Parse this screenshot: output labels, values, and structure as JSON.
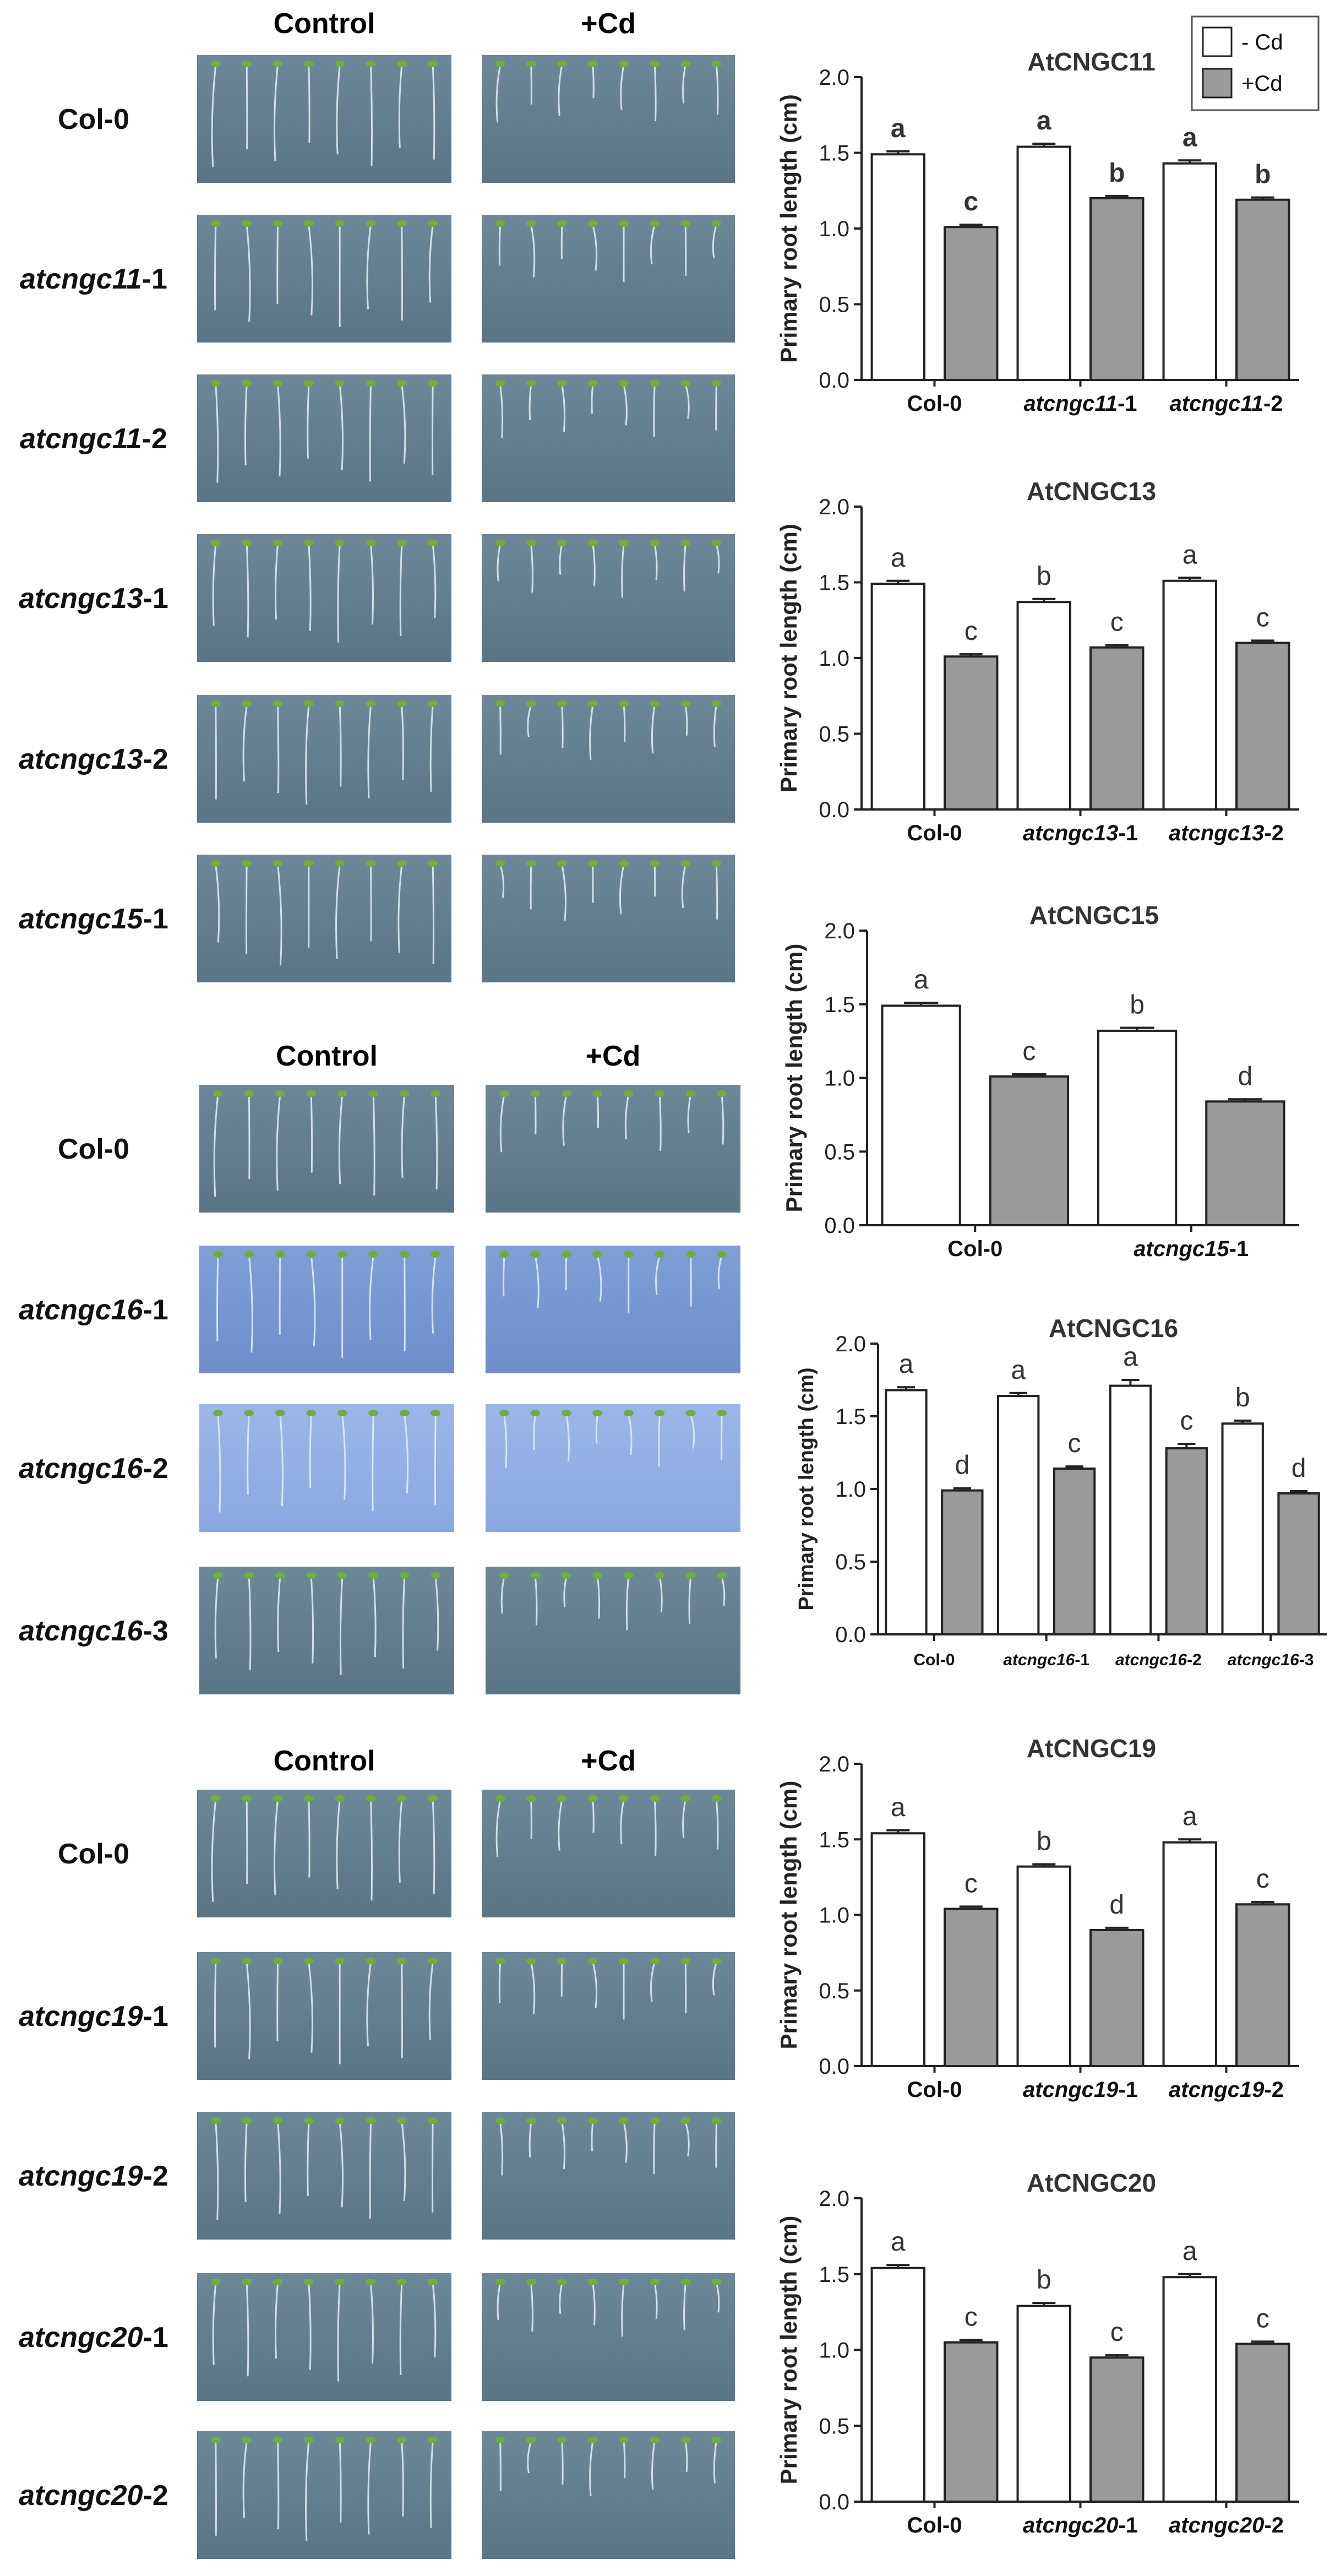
{
  "legend": {
    "items": [
      {
        "label": "- Cd",
        "fill": "#ffffff"
      },
      {
        "label": "+Cd",
        "fill": "#9a9a9a"
      }
    ]
  },
  "photo_panels": [
    {
      "col_headers": [
        "Control",
        "+Cd"
      ],
      "rows": [
        {
          "italic": "",
          "suffix": "Col-0"
        },
        {
          "italic": "atcngc11",
          "suffix": "-1"
        },
        {
          "italic": "atcngc11",
          "suffix": "-2"
        },
        {
          "italic": "atcngc13",
          "suffix": "-1"
        },
        {
          "italic": "atcngc13",
          "suffix": "-2"
        },
        {
          "italic": "atcngc15",
          "suffix": "-1"
        }
      ]
    },
    {
      "col_headers": [
        "Control",
        "+Cd"
      ],
      "rows": [
        {
          "italic": "",
          "suffix": "Col-0"
        },
        {
          "italic": "atcngc16",
          "suffix": "-1"
        },
        {
          "italic": "atcngc16",
          "suffix": "-2"
        },
        {
          "italic": "atcngc16",
          "suffix": "-3"
        }
      ]
    },
    {
      "col_headers": [
        "Control",
        "+Cd"
      ],
      "rows": [
        {
          "italic": "",
          "suffix": "Col-0"
        },
        {
          "italic": "atcngc19",
          "suffix": "-1"
        },
        {
          "italic": "atcngc19",
          "suffix": "-2"
        },
        {
          "italic": "atcngc20",
          "suffix": "-1"
        },
        {
          "italic": "atcngc20",
          "suffix": "-2"
        }
      ]
    }
  ],
  "chart_data": [
    {
      "type": "bar",
      "title": "AtCNGC11",
      "ylabel": "Primary root length (cm)",
      "ylim": [
        0,
        2.0
      ],
      "yticks": [
        "0.0",
        "0.5",
        "1.0",
        "1.5",
        "2.0"
      ],
      "groups": [
        {
          "italic": "",
          "suffix": "Col-0"
        },
        {
          "italic": "atcngc11",
          "suffix": "-1"
        },
        {
          "italic": "atcngc11",
          "suffix": "-2"
        }
      ],
      "series": [
        {
          "name": "- Cd",
          "values": [
            1.49,
            1.54,
            1.43
          ],
          "errors": [
            0.02,
            0.02,
            0.02
          ],
          "letters": [
            "a",
            "a",
            "a"
          ]
        },
        {
          "name": "+Cd",
          "values": [
            1.01,
            1.2,
            1.19
          ],
          "errors": [
            0.015,
            0.015,
            0.015
          ],
          "letters": [
            "c",
            "b",
            "b"
          ]
        }
      ]
    },
    {
      "type": "bar",
      "title": "AtCNGC13",
      "ylabel": "Primary root length (cm)",
      "ylim": [
        0,
        2.0
      ],
      "yticks": [
        "0.0",
        "0.5",
        "1.0",
        "1.5",
        "2.0"
      ],
      "groups": [
        {
          "italic": "",
          "suffix": "Col-0"
        },
        {
          "italic": "atcngc13",
          "suffix": "-1"
        },
        {
          "italic": "atcngc13",
          "suffix": "-2"
        }
      ],
      "series": [
        {
          "name": "- Cd",
          "values": [
            1.49,
            1.37,
            1.51
          ],
          "errors": [
            0.02,
            0.02,
            0.02
          ],
          "letters": [
            "a",
            "b",
            "a"
          ]
        },
        {
          "name": "+Cd",
          "values": [
            1.01,
            1.07,
            1.1
          ],
          "errors": [
            0.015,
            0.015,
            0.015
          ],
          "letters": [
            "c",
            "c",
            "c"
          ]
        }
      ]
    },
    {
      "type": "bar",
      "title": "AtCNGC15",
      "ylabel": "Primary root length (cm)",
      "ylim": [
        0,
        2.0
      ],
      "yticks": [
        "0.0",
        "0.5",
        "1.0",
        "1.5",
        "2.0"
      ],
      "groups": [
        {
          "italic": "",
          "suffix": "Col-0"
        },
        {
          "italic": "atcngc15",
          "suffix": "-1"
        }
      ],
      "series": [
        {
          "name": "- Cd",
          "values": [
            1.49,
            1.32
          ],
          "errors": [
            0.02,
            0.02
          ],
          "letters": [
            "a",
            "b"
          ]
        },
        {
          "name": "+Cd",
          "values": [
            1.01,
            0.84
          ],
          "errors": [
            0.015,
            0.015
          ],
          "letters": [
            "c",
            "d"
          ]
        }
      ]
    },
    {
      "type": "bar",
      "title": "AtCNGC16",
      "ylabel": "Primary root length (cm)",
      "ylim": [
        0,
        2.0
      ],
      "yticks": [
        "0.0",
        "0.5",
        "1.0",
        "1.5",
        "2.0"
      ],
      "groups": [
        {
          "italic": "",
          "suffix": "Col-0"
        },
        {
          "italic": "atcngc16",
          "suffix": "-1"
        },
        {
          "italic": "atcngc16",
          "suffix": "-2"
        },
        {
          "italic": "atcngc16",
          "suffix": "-3"
        }
      ],
      "series": [
        {
          "name": "- Cd",
          "values": [
            1.68,
            1.64,
            1.71,
            1.45
          ],
          "errors": [
            0.02,
            0.02,
            0.04,
            0.02
          ],
          "letters": [
            "a",
            "a",
            "a",
            "b"
          ]
        },
        {
          "name": "+Cd",
          "values": [
            0.99,
            1.14,
            1.28,
            0.97
          ],
          "errors": [
            0.015,
            0.015,
            0.03,
            0.015
          ],
          "letters": [
            "d",
            "c",
            "c",
            "d"
          ]
        }
      ]
    },
    {
      "type": "bar",
      "title": "AtCNGC19",
      "ylabel": "Primary root length (cm)",
      "ylim": [
        0,
        2.0
      ],
      "yticks": [
        "0.0",
        "0.5",
        "1.0",
        "1.5",
        "2.0"
      ],
      "groups": [
        {
          "italic": "",
          "suffix": "Col-0"
        },
        {
          "italic": "atcngc19",
          "suffix": "-1"
        },
        {
          "italic": "atcngc19",
          "suffix": "-2"
        }
      ],
      "series": [
        {
          "name": "- Cd",
          "values": [
            1.54,
            1.32,
            1.48
          ],
          "errors": [
            0.02,
            0.015,
            0.02
          ],
          "letters": [
            "a",
            "b",
            "a"
          ]
        },
        {
          "name": "+Cd",
          "values": [
            1.04,
            0.9,
            1.07
          ],
          "errors": [
            0.015,
            0.015,
            0.015
          ],
          "letters": [
            "c",
            "d",
            "c"
          ]
        }
      ]
    },
    {
      "type": "bar",
      "title": "AtCNGC20",
      "ylabel": "Primary root length (cm)",
      "ylim": [
        0,
        2.0
      ],
      "yticks": [
        "0.0",
        "0.5",
        "1.0",
        "1.5",
        "2.0"
      ],
      "groups": [
        {
          "italic": "",
          "suffix": "Col-0"
        },
        {
          "italic": "atcngc20",
          "suffix": "-1"
        },
        {
          "italic": "atcngc20",
          "suffix": "-2"
        }
      ],
      "series": [
        {
          "name": "- Cd",
          "values": [
            1.54,
            1.29,
            1.48
          ],
          "errors": [
            0.02,
            0.02,
            0.02
          ],
          "letters": [
            "a",
            "b",
            "a"
          ]
        },
        {
          "name": "+Cd",
          "values": [
            1.05,
            0.95,
            1.04
          ],
          "errors": [
            0.015,
            0.015,
            0.015
          ],
          "letters": [
            "c",
            "c",
            "c"
          ]
        }
      ]
    }
  ]
}
